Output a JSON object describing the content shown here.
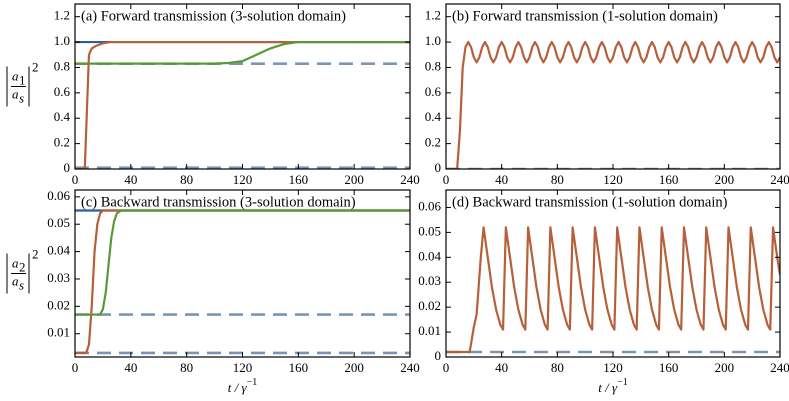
{
  "chart_data": [
    {
      "type": "line",
      "title": "(a) Forward transmission (3-solution domain)",
      "xlim": [
        0,
        240
      ],
      "xticks": [
        0,
        40,
        80,
        120,
        160,
        200,
        240
      ],
      "ylim": [
        0,
        1.3
      ],
      "yticks": [
        0,
        0.2,
        0.4,
        0.6,
        0.8,
        {
          "value": 1,
          "label": "1.0"
        },
        1.2
      ],
      "ylabel": {
        "numerator": [
          "a",
          "1"
        ],
        "denominator": [
          "a",
          "s"
        ],
        "power": "2"
      },
      "series": [
        {
          "color": "#7a96b4",
          "dash": true,
          "x": [
            0,
            240
          ],
          "values": [
            0.83,
            0.83
          ]
        },
        {
          "color": "#7a96b4",
          "dash": true,
          "x": [
            0,
            240
          ],
          "values": [
            0.01,
            0.01
          ]
        },
        {
          "color": "#2c5d9c",
          "x": [
            0,
            240
          ],
          "values": [
            1,
            1
          ]
        },
        {
          "color": "#b5603a",
          "x": [
            0,
            7,
            9,
            10,
            12,
            15,
            20,
            25,
            240
          ],
          "values": [
            0,
            0,
            0.6,
            0.9,
            0.95,
            0.97,
            0.99,
            1,
            1
          ]
        },
        {
          "color": "#5b9838",
          "x": [
            0,
            100,
            110,
            120,
            130,
            140,
            150,
            160,
            240
          ],
          "values": [
            0.83,
            0.83,
            0.835,
            0.85,
            0.9,
            0.95,
            0.985,
            1,
            1
          ]
        }
      ]
    },
    {
      "type": "line",
      "title": "(b) Forward transmission (1-solution domain)",
      "xlim": [
        0,
        240
      ],
      "xticks": [
        0,
        40,
        80,
        120,
        160,
        200,
        240
      ],
      "ylim": [
        0,
        1.3
      ],
      "yticks": [
        0,
        0.2,
        0.4,
        0.6,
        0.8,
        {
          "value": 1,
          "label": "1.0"
        },
        1.2
      ],
      "series": [
        {
          "color": "#7a96b4",
          "dash": true,
          "x": [
            0,
            240
          ],
          "values": [
            0,
            0
          ]
        },
        {
          "color": "#b5603a",
          "x": [
            0,
            8,
            10,
            12,
            14,
            16,
            18,
            20,
            22,
            24,
            26,
            28,
            30,
            32,
            34,
            36,
            38,
            40,
            42,
            44,
            46,
            48,
            50,
            52,
            54,
            56,
            58,
            60,
            62,
            64,
            66,
            68,
            70,
            72,
            74,
            76,
            78,
            80,
            82,
            84,
            86,
            88,
            90,
            92,
            94,
            96,
            98,
            100,
            102,
            104,
            106,
            108,
            110,
            112,
            114,
            116,
            118,
            120,
            122,
            124,
            126,
            128,
            130,
            132,
            134,
            136,
            138,
            140,
            142,
            144,
            146,
            148,
            150,
            152,
            154,
            156,
            158,
            160,
            162,
            164,
            166,
            168,
            170,
            172,
            174,
            176,
            178,
            180,
            182,
            184,
            186,
            188,
            190,
            192,
            194,
            196,
            198,
            200,
            202,
            204,
            206,
            208,
            210,
            212,
            214,
            216,
            218,
            220,
            222,
            224,
            226,
            228,
            230,
            232,
            234,
            236,
            238,
            240
          ],
          "values": [
            0,
            0,
            0.3,
            0.8,
            0.96,
            1,
            0.96,
            0.88,
            0.84,
            0.88,
            0.96,
            1,
            0.96,
            0.88,
            0.84,
            0.88,
            0.96,
            1,
            0.96,
            0.88,
            0.84,
            0.88,
            0.96,
            1,
            0.96,
            0.88,
            0.84,
            0.88,
            0.96,
            1,
            0.96,
            0.88,
            0.84,
            0.88,
            0.96,
            1,
            0.96,
            0.88,
            0.84,
            0.88,
            0.96,
            1,
            0.96,
            0.88,
            0.84,
            0.88,
            0.96,
            1,
            0.96,
            0.88,
            0.84,
            0.88,
            0.96,
            1,
            0.96,
            0.88,
            0.84,
            0.88,
            0.96,
            1,
            0.96,
            0.88,
            0.84,
            0.88,
            0.96,
            1,
            0.96,
            0.88,
            0.84,
            0.88,
            0.96,
            1,
            0.96,
            0.88,
            0.84,
            0.88,
            0.96,
            1,
            0.96,
            0.88,
            0.84,
            0.88,
            0.96,
            1,
            0.96,
            0.88,
            0.84,
            0.88,
            0.96,
            1,
            0.96,
            0.88,
            0.84,
            0.88,
            0.96,
            1,
            0.96,
            0.88,
            0.84,
            0.88,
            0.96,
            1,
            0.96,
            0.88,
            0.84,
            0.88,
            0.96,
            1,
            0.96,
            0.88,
            0.84,
            0.88,
            0.96,
            1,
            0.96,
            0.88,
            0.84,
            0.88
          ]
        }
      ]
    },
    {
      "type": "line",
      "title": "(c) Backward transmission (3-solution domain)",
      "xlim": [
        0,
        240
      ],
      "xticks": [
        0,
        40,
        80,
        120,
        160,
        200,
        240
      ],
      "ylim": [
        0.0015,
        0.0625
      ],
      "yticks": [
        0.01,
        0.02,
        0.03,
        0.04,
        0.05,
        0.06
      ],
      "ylabel": {
        "numerator": [
          "a",
          "2"
        ],
        "denominator": [
          "a",
          "s"
        ],
        "power": "2"
      },
      "xlabel": {
        "text": "t / γ",
        "sup": "−1"
      },
      "series": [
        {
          "color": "#7a96b4",
          "dash": true,
          "x": [
            0,
            240
          ],
          "values": [
            0.017,
            0.017
          ]
        },
        {
          "color": "#7a96b4",
          "dash": true,
          "x": [
            0,
            240
          ],
          "values": [
            0.003,
            0.003
          ]
        },
        {
          "color": "#2c5d9c",
          "x": [
            0,
            240
          ],
          "values": [
            0.055,
            0.055
          ]
        },
        {
          "color": "#b5603a",
          "x": [
            0,
            8,
            10,
            12,
            14,
            16,
            18,
            20,
            240
          ],
          "values": [
            0.003,
            0.003,
            0.006,
            0.02,
            0.04,
            0.05,
            0.054,
            0.055,
            0.055
          ]
        },
        {
          "color": "#5b9838",
          "x": [
            0,
            18,
            20,
            22,
            24,
            26,
            28,
            30,
            33,
            240
          ],
          "values": [
            0.017,
            0.017,
            0.019,
            0.025,
            0.035,
            0.045,
            0.051,
            0.054,
            0.055,
            0.055
          ]
        }
      ]
    },
    {
      "type": "line",
      "title": "(d) Backward transmission (1-solution domain)",
      "xlim": [
        0,
        240
      ],
      "xticks": [
        0,
        40,
        80,
        120,
        160,
        200,
        240
      ],
      "ylim": [
        0,
        0.067
      ],
      "yticks": [
        0,
        0.01,
        0.02,
        0.03,
        0.04,
        0.05,
        0.06
      ],
      "xlabel": {
        "text": "t / γ",
        "sup": "−1"
      },
      "series": [
        {
          "color": "#7a96b4",
          "dash": true,
          "x": [
            0,
            240
          ],
          "values": [
            0.002,
            0.002
          ]
        },
        {
          "color": "#b5603a",
          "x": [
            0,
            17,
            20,
            22,
            25,
            27,
            30,
            33,
            36,
            39,
            41,
            43,
            46,
            49,
            52,
            55,
            57,
            59,
            62,
            65,
            68,
            71,
            73,
            75,
            78,
            81,
            84,
            87,
            89,
            91,
            94,
            97,
            100,
            103,
            105,
            107,
            110,
            113,
            116,
            119,
            121,
            123,
            126,
            129,
            132,
            135,
            137,
            139,
            142,
            145,
            148,
            151,
            153,
            155,
            158,
            161,
            164,
            167,
            169,
            171,
            174,
            177,
            180,
            183,
            185,
            187,
            190,
            193,
            196,
            199,
            201,
            203,
            206,
            209,
            212,
            215,
            217,
            219,
            222,
            225,
            228,
            231,
            233,
            235,
            238,
            240
          ],
          "values": [
            0.002,
            0.002,
            0.012,
            0.017,
            0.04,
            0.052,
            0.04,
            0.028,
            0.019,
            0.013,
            0.011,
            0.052,
            0.04,
            0.028,
            0.019,
            0.013,
            0.011,
            0.052,
            0.04,
            0.028,
            0.019,
            0.013,
            0.011,
            0.052,
            0.04,
            0.028,
            0.019,
            0.013,
            0.011,
            0.052,
            0.04,
            0.028,
            0.019,
            0.013,
            0.011,
            0.052,
            0.04,
            0.028,
            0.019,
            0.013,
            0.011,
            0.052,
            0.04,
            0.028,
            0.019,
            0.013,
            0.011,
            0.052,
            0.04,
            0.028,
            0.019,
            0.013,
            0.011,
            0.052,
            0.04,
            0.028,
            0.019,
            0.013,
            0.011,
            0.052,
            0.04,
            0.028,
            0.019,
            0.013,
            0.011,
            0.052,
            0.04,
            0.028,
            0.019,
            0.013,
            0.011,
            0.052,
            0.04,
            0.028,
            0.019,
            0.013,
            0.011,
            0.052,
            0.04,
            0.028,
            0.019,
            0.013,
            0.011,
            0.052,
            0.04,
            0.033
          ]
        }
      ]
    }
  ]
}
